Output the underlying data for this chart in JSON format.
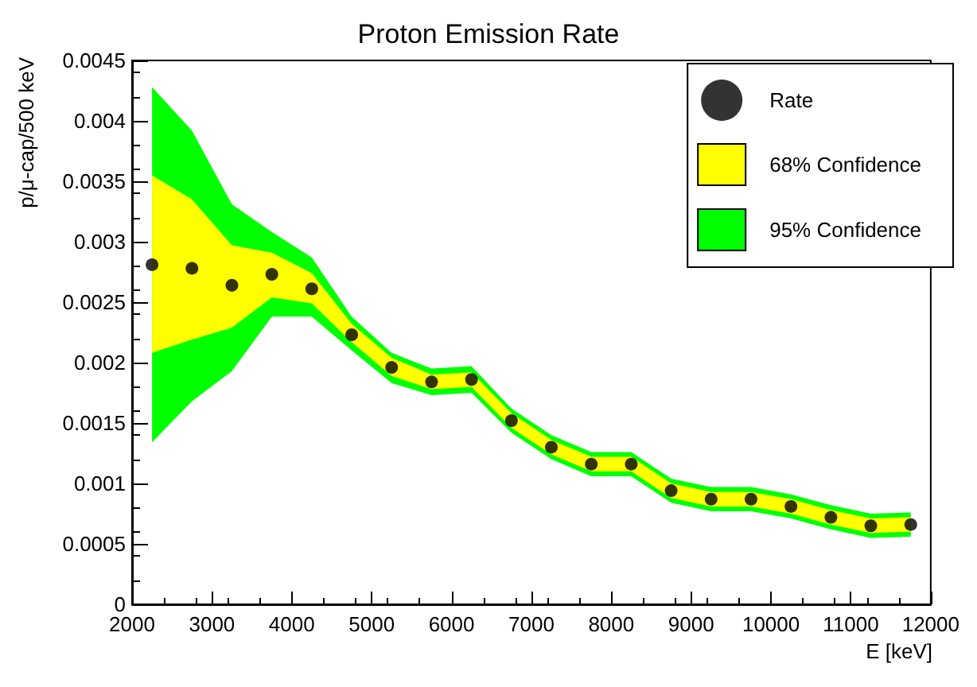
{
  "chart_data": {
    "type": "scatter",
    "title": "Proton Emission Rate",
    "xlabel": "E [keV]",
    "ylabel": "p/μ-cap/500 keV",
    "x": [
      2250,
      2750,
      3250,
      3750,
      4250,
      4750,
      5250,
      5750,
      6250,
      6750,
      7250,
      7750,
      8250,
      8750,
      9250,
      9750,
      10250,
      10750,
      11250,
      11750
    ],
    "series": [
      {
        "name": "Rate",
        "color": "#000000",
        "marker": "circle",
        "values": [
          0.00281,
          0.00278,
          0.00264,
          0.00273,
          0.00261,
          0.00223,
          0.00196,
          0.00184,
          0.00186,
          0.00152,
          0.0013,
          0.00116,
          0.00116,
          0.00094,
          0.00087,
          0.00087,
          0.00081,
          0.00072,
          0.00065,
          0.00066
        ]
      },
      {
        "name": "68% Confidence",
        "type": "area",
        "color": "#ffff00",
        "values": [
          null,
          null,
          null,
          null,
          null,
          null,
          null,
          null,
          null,
          null,
          null,
          null,
          null,
          null,
          null,
          null,
          null,
          null,
          null,
          null
        ],
        "upper": [
          0.00355,
          0.00335,
          0.00297,
          0.00291,
          0.00274,
          0.00232,
          0.00204,
          0.0019,
          0.00192,
          0.00158,
          0.00136,
          0.00122,
          0.00122,
          0.001,
          0.00093,
          0.00093,
          0.00087,
          0.00078,
          0.00071,
          0.00072
        ],
        "lower": [
          0.00208,
          0.00219,
          0.00229,
          0.00254,
          0.00249,
          0.00217,
          0.00189,
          0.00178,
          0.0018,
          0.00146,
          0.00124,
          0.0011,
          0.0011,
          0.00088,
          0.00081,
          0.00081,
          0.00075,
          0.00066,
          0.00059,
          0.0006
        ]
      },
      {
        "name": "95% Confidence",
        "type": "area",
        "color": "#00ff00",
        "values": [
          null,
          null,
          null,
          null,
          null,
          null,
          null,
          null,
          null,
          null,
          null,
          null,
          null,
          null,
          null,
          null,
          null,
          null,
          null,
          null
        ],
        "upper": [
          0.00428,
          0.00392,
          0.00331,
          0.00308,
          0.00287,
          0.00238,
          0.00208,
          0.00195,
          0.00197,
          0.00162,
          0.0014,
          0.00126,
          0.00126,
          0.00104,
          0.00097,
          0.00097,
          0.00091,
          0.00082,
          0.00075,
          0.00076
        ],
        "lower": [
          0.00134,
          0.00168,
          0.00193,
          0.00238,
          0.00238,
          0.0021,
          0.00183,
          0.00173,
          0.00175,
          0.00142,
          0.0012,
          0.00106,
          0.00106,
          0.00084,
          0.00077,
          0.00077,
          0.00071,
          0.00062,
          0.00055,
          0.00056
        ]
      }
    ],
    "xlim": [
      2000,
      12000
    ],
    "xticks": [
      2000,
      3000,
      4000,
      5000,
      6000,
      7000,
      8000,
      9000,
      10000,
      11000,
      12000
    ],
    "ylim": [
      0,
      0.0045
    ],
    "yticks": [
      0,
      0.0005,
      0.001,
      0.0015,
      0.002,
      0.0025,
      0.003,
      0.0035,
      0.004,
      0.0045
    ],
    "grid": false,
    "legend": "top right"
  }
}
